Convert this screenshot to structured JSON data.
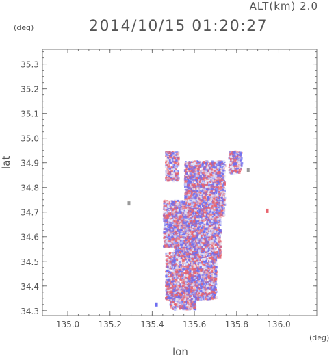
{
  "chart_data": {
    "type": "heatmap",
    "title": "2014/10/15 01:20:27",
    "altitude_label": "ALT(km)",
    "altitude_value": "2.0",
    "xlabel": "lon",
    "ylabel": "lat",
    "x_unit": "(deg)",
    "y_unit": "(deg)",
    "xlim": [
      134.88,
      136.18
    ],
    "ylim": [
      34.28,
      35.36
    ],
    "x_ticks": [
      "135.0",
      "135.2",
      "135.4",
      "135.6",
      "135.8",
      "136.0"
    ],
    "y_ticks": [
      "34.3",
      "34.4",
      "34.5",
      "34.6",
      "34.7",
      "34.8",
      "34.9",
      "35.0",
      "35.1",
      "35.2",
      "35.3"
    ],
    "grid": false,
    "colors": {
      "positive": "#e8646e",
      "negative": "#6e6ef0",
      "neutral": "#e6e6f4"
    },
    "regions": [
      {
        "lon": [
          135.46,
          135.52
        ],
        "lat": [
          34.83,
          34.95
        ]
      },
      {
        "lon": [
          135.55,
          135.74
        ],
        "lat": [
          34.69,
          34.91
        ]
      },
      {
        "lon": [
          135.76,
          135.82
        ],
        "lat": [
          34.86,
          34.95
        ]
      },
      {
        "lon": [
          135.45,
          135.56
        ],
        "lat": [
          34.56,
          34.75
        ]
      },
      {
        "lon": [
          135.5,
          135.72
        ],
        "lat": [
          34.52,
          34.72
        ]
      },
      {
        "lon": [
          135.46,
          135.7
        ],
        "lat": [
          34.35,
          34.54
        ]
      },
      {
        "lon": [
          135.48,
          135.6
        ],
        "lat": [
          34.31,
          34.38
        ]
      }
    ],
    "points": [
      {
        "lon": 135.945,
        "lat": 34.705,
        "value": 1
      },
      {
        "lon": 135.42,
        "lat": 34.325,
        "value": -1
      },
      {
        "lon": 135.29,
        "lat": 34.735,
        "value": 0
      },
      {
        "lon": 135.855,
        "lat": 34.87,
        "value": 0
      }
    ]
  }
}
